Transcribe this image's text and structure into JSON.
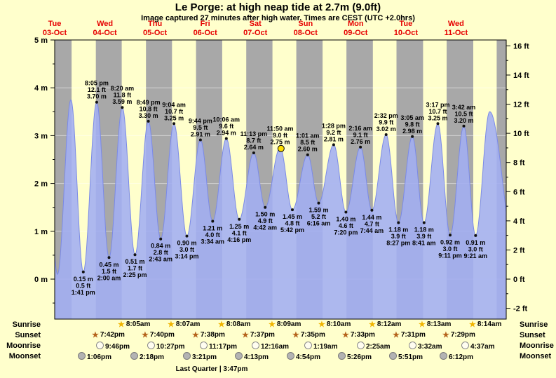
{
  "title": "Le Porge: at high  neap tide at 2.7m (9.0ft)",
  "subtitle": "Image captured 27 minutes after high water. Times are CEST (UTC +2.0hrs)",
  "colors": {
    "background": "#ffffcc",
    "night": "#a8a8a8",
    "tide_fill": "#a2aef2",
    "tide_line": "#7b8ae6",
    "date_red": "#e60000",
    "marker_yellow": "#ffdf00"
  },
  "days": [
    {
      "name": "Tue",
      "date": "03-Oct"
    },
    {
      "name": "Wed",
      "date": "04-Oct"
    },
    {
      "name": "Thu",
      "date": "05-Oct"
    },
    {
      "name": "Fri",
      "date": "06-Oct"
    },
    {
      "name": "Sat",
      "date": "07-Oct"
    },
    {
      "name": "Sun",
      "date": "08-Oct"
    },
    {
      "name": "Mon",
      "date": "09-Oct"
    },
    {
      "name": "Tue",
      "date": "10-Oct"
    },
    {
      "name": "Wed",
      "date": "11-Oct"
    }
  ],
  "chart_data": {
    "type": "area",
    "title": "Le Porge: at high  neap tide at 2.7m (9.0ft)",
    "x_axis": {
      "start": "Tue 03-Oct 00:00",
      "end": "Wed 11-Oct 24:00",
      "days": 9
    },
    "y_axis_left": {
      "unit": "m",
      "range": [
        -0.84,
        5.0
      ],
      "labels": [
        {
          "v": 5,
          "text": "5 m"
        },
        {
          "v": 4,
          "text": "4 m"
        },
        {
          "v": 3,
          "text": "3 m"
        },
        {
          "v": 2,
          "text": "2 m"
        },
        {
          "v": 1,
          "text": "1 m"
        },
        {
          "v": 0,
          "text": "0 m"
        }
      ]
    },
    "y_axis_right": {
      "unit": "ft",
      "labels": [
        {
          "v": 16,
          "text": "16 ft"
        },
        {
          "v": 14,
          "text": "14 ft"
        },
        {
          "v": 12,
          "text": "12 ft"
        },
        {
          "v": 10,
          "text": "10 ft"
        },
        {
          "v": 8,
          "text": "8 ft"
        },
        {
          "v": 6,
          "text": "6 ft"
        },
        {
          "v": 4,
          "text": "4 ft"
        },
        {
          "v": 2,
          "text": "2 ft"
        },
        {
          "v": 0,
          "text": "0 ft"
        },
        {
          "v": -2,
          "text": "-2 ft"
        }
      ]
    },
    "tide_extremes": [
      {
        "day": 0,
        "time": "1:41 pm",
        "type": "low",
        "m": "0.15 m",
        "ft": "0.5 ft"
      },
      {
        "day": 0,
        "time": "8:05 pm",
        "type": "high",
        "m": "3.70 m",
        "ft": "12.1 ft"
      },
      {
        "day": 1,
        "time": "2:00 am",
        "type": "low",
        "m": "0.45 m",
        "ft": "1.5 ft"
      },
      {
        "day": 1,
        "time": "8:20 am",
        "type": "high",
        "m": "3.59 m",
        "ft": "11.8 ft"
      },
      {
        "day": 1,
        "time": "2:25 pm",
        "type": "low",
        "m": "0.51 m",
        "ft": "1.7 ft"
      },
      {
        "day": 1,
        "time": "8:49 pm",
        "type": "high",
        "m": "3.30 m",
        "ft": "10.8 ft"
      },
      {
        "day": 2,
        "time": "2:43 am",
        "type": "low",
        "m": "0.84 m",
        "ft": "2.8 ft"
      },
      {
        "day": 2,
        "time": "9:04 am",
        "type": "high",
        "m": "3.25 m",
        "ft": "10.7 ft"
      },
      {
        "day": 2,
        "time": "3:14 pm",
        "type": "low",
        "m": "0.90 m",
        "ft": "3.0 ft"
      },
      {
        "day": 2,
        "time": "9:44 pm",
        "type": "high",
        "m": "2.91 m",
        "ft": "9.5 ft"
      },
      {
        "day": 3,
        "time": "3:34 am",
        "type": "low",
        "m": "1.21 m",
        "ft": "4.0 ft"
      },
      {
        "day": 3,
        "time": "10:06 am",
        "type": "high",
        "m": "2.94 m",
        "ft": "9.6 ft"
      },
      {
        "day": 3,
        "time": "4:16 pm",
        "type": "low",
        "m": "1.25 m",
        "ft": "4.1 ft"
      },
      {
        "day": 3,
        "time": "11:13 pm",
        "type": "high",
        "m": "2.64 m",
        "ft": "8.7 ft"
      },
      {
        "day": 4,
        "time": "4:42 am",
        "type": "low",
        "m": "1.50 m",
        "ft": "4.9 ft"
      },
      {
        "day": 4,
        "time": "11:50 am",
        "type": "high",
        "m": "2.75 m",
        "ft": "9.0 ft"
      },
      {
        "day": 4,
        "time": "5:42 pm",
        "type": "low",
        "m": "1.45 m",
        "ft": "4.8 ft"
      },
      {
        "day": 5,
        "time": "1:01 am",
        "type": "high",
        "m": "2.60 m",
        "ft": "8.5 ft"
      },
      {
        "day": 5,
        "time": "6:16 am",
        "type": "low",
        "m": "1.59 m",
        "ft": "5.2 ft"
      },
      {
        "day": 5,
        "time": "1:28 pm",
        "type": "high",
        "m": "2.81 m",
        "ft": "9.2 ft"
      },
      {
        "day": 5,
        "time": "7:20 pm",
        "type": "low",
        "m": "1.40 m",
        "ft": "4.6 ft"
      },
      {
        "day": 6,
        "time": "2:16 am",
        "type": "high",
        "m": "2.76 m",
        "ft": "9.1 ft"
      },
      {
        "day": 6,
        "time": "7:44 am",
        "type": "low",
        "m": "1.44 m",
        "ft": "4.7 ft"
      },
      {
        "day": 6,
        "time": "2:32 pm",
        "type": "high",
        "m": "3.02 m",
        "ft": "9.9 ft"
      },
      {
        "day": 6,
        "time": "8:27 pm",
        "type": "low",
        "m": "1.18 m",
        "ft": "3.9 ft"
      },
      {
        "day": 7,
        "time": "3:05 am",
        "type": "high",
        "m": "2.98 m",
        "ft": "9.8 ft"
      },
      {
        "day": 7,
        "time": "8:41 am",
        "type": "low",
        "m": "1.18 m",
        "ft": "3.9 ft"
      },
      {
        "day": 7,
        "time": "3:17 pm",
        "type": "high",
        "m": "3.25 m",
        "ft": "10.7 ft"
      },
      {
        "day": 7,
        "time": "9:11 pm",
        "type": "low",
        "m": "0.92 m",
        "ft": "3.0 ft"
      },
      {
        "day": 8,
        "time": "3:42 am",
        "type": "high",
        "m": "3.20 m",
        "ft": "10.5 ft"
      },
      {
        "day": 8,
        "time": "9:21 am",
        "type": "low",
        "m": "0.91 m",
        "ft": "3.0 ft"
      }
    ],
    "offscreen_or_unlabeled_extremes": [
      {
        "day": -1,
        "hours": 19.5,
        "m": 3.6
      },
      {
        "day": 0,
        "hours": 1.33,
        "m": 0.1
      },
      {
        "day": 0,
        "hours": 7.75,
        "m": 3.75
      },
      {
        "day": 8,
        "hours": 16.1,
        "m": 3.5
      },
      {
        "day": 9,
        "hours": 4.5,
        "m": 0.55
      }
    ],
    "current_marker": {
      "day": 4,
      "hours": 12.28,
      "m": 2.73
    }
  },
  "sun_moon": {
    "rows": [
      {
        "label": "Sunrise",
        "icon": "sunrise-star",
        "events": [
          {
            "day": 1,
            "time": "8:05am"
          },
          {
            "day": 2,
            "time": "8:07am"
          },
          {
            "day": 3,
            "time": "8:08am"
          },
          {
            "day": 4,
            "time": "8:09am"
          },
          {
            "day": 5,
            "time": "8:10am"
          },
          {
            "day": 6,
            "time": "8:12am"
          },
          {
            "day": 7,
            "time": "8:13am"
          },
          {
            "day": 8,
            "time": "8:14am"
          }
        ]
      },
      {
        "label": "Sunset",
        "icon": "sunset-star",
        "events": [
          {
            "day": 0,
            "time": "7:42pm"
          },
          {
            "day": 1,
            "time": "7:40pm"
          },
          {
            "day": 2,
            "time": "7:38pm"
          },
          {
            "day": 3,
            "time": "7:37pm"
          },
          {
            "day": 4,
            "time": "7:35pm"
          },
          {
            "day": 5,
            "time": "7:33pm"
          },
          {
            "day": 6,
            "time": "7:31pm"
          },
          {
            "day": 7,
            "time": "7:29pm"
          }
        ]
      },
      {
        "label": "Moonrise",
        "icon": "moonrise-moon",
        "events": [
          {
            "day": 0,
            "time": "9:46pm"
          },
          {
            "day": 1,
            "time": "10:27pm"
          },
          {
            "day": 2,
            "time": "11:17pm"
          },
          {
            "day": 4,
            "time": "12:16am"
          },
          {
            "day": 5,
            "time": "1:19am"
          },
          {
            "day": 6,
            "time": "2:25am"
          },
          {
            "day": 7,
            "time": "3:32am"
          },
          {
            "day": 8,
            "time": "4:37am"
          }
        ]
      },
      {
        "label": "Moonset",
        "icon": "moonset-moon",
        "events": [
          {
            "day": 0,
            "time": "1:06pm"
          },
          {
            "day": 1,
            "time": "2:18pm"
          },
          {
            "day": 2,
            "time": "3:21pm"
          },
          {
            "day": 3,
            "time": "4:13pm"
          },
          {
            "day": 4,
            "time": "4:54pm"
          },
          {
            "day": 5,
            "time": "5:26pm"
          },
          {
            "day": 6,
            "time": "5:51pm"
          },
          {
            "day": 7,
            "time": "6:12pm"
          }
        ]
      }
    ],
    "footer": "Last Quarter | 3:47pm"
  }
}
